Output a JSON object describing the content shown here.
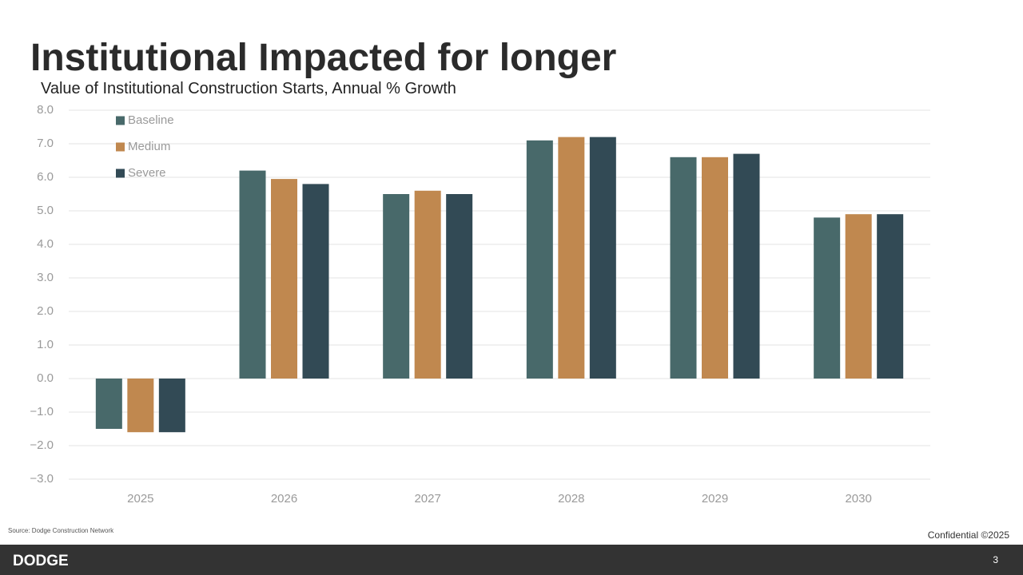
{
  "slide": {
    "title": "Institutional Impacted for longer",
    "source": "Source: Dodge Construction Network",
    "confidential": "Confidential ©2025",
    "logo": "DODGE",
    "page_number": "3"
  },
  "chart_data": {
    "type": "bar",
    "title": "Value of Institutional Construction Starts, Annual % Growth",
    "categories": [
      "2025",
      "2026",
      "2027",
      "2028",
      "2029",
      "2030"
    ],
    "series": [
      {
        "name": "Baseline",
        "color": "#48696a",
        "values": [
          -1.5,
          6.2,
          5.5,
          7.1,
          6.6,
          4.8
        ]
      },
      {
        "name": "Medium",
        "color": "#c0884f",
        "values": [
          -1.6,
          5.95,
          5.6,
          7.2,
          6.6,
          4.9
        ]
      },
      {
        "name": "Severe",
        "color": "#324a55",
        "values": [
          -1.6,
          5.8,
          5.5,
          7.2,
          6.7,
          4.9
        ]
      }
    ],
    "ylim": [
      -3,
      8
    ],
    "yticks": [
      {
        "value": 8,
        "label": "8.0"
      },
      {
        "value": 7,
        "label": "7.0"
      },
      {
        "value": 6,
        "label": "6.0"
      },
      {
        "value": 5,
        "label": "5.0"
      },
      {
        "value": 4,
        "label": "4.0"
      },
      {
        "value": 3,
        "label": "3.0"
      },
      {
        "value": 2,
        "label": "2.0"
      },
      {
        "value": 1,
        "label": "1.0"
      },
      {
        "value": 0,
        "label": "0.0"
      },
      {
        "value": -1,
        "label": "−1.0"
      },
      {
        "value": -2,
        "label": "−2.0"
      },
      {
        "value": -3,
        "label": "−3.0"
      }
    ],
    "grid": true,
    "legend": "top-left"
  }
}
